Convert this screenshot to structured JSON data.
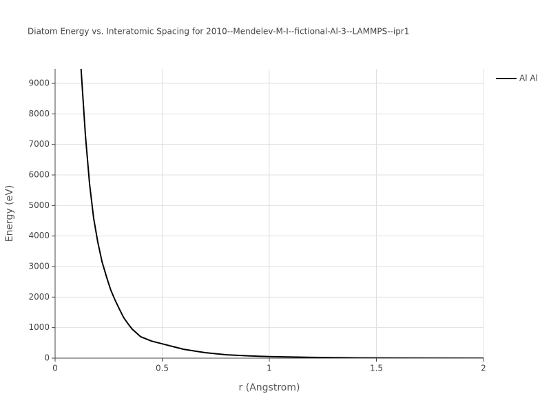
{
  "chart_data": {
    "type": "line",
    "title": "Diatom Energy vs. Interatomic Spacing for 2010--Mendelev-M-I--fictional-Al-3--LAMMPS--ipr1",
    "x_label": "r (Angstrom)",
    "y_label": "Energy (eV)",
    "x": [
      0.12,
      0.1415,
      0.161,
      0.18,
      0.199,
      0.219,
      0.241,
      0.26,
      0.28,
      0.302,
      0.32,
      0.34,
      0.36,
      0.4,
      0.45,
      0.5,
      0.6,
      0.7,
      0.8,
      0.9,
      1.0,
      1.2,
      1.4,
      1.6,
      1.8,
      2.0
    ],
    "series": [
      {
        "name": "Al Al",
        "color": "#000000",
        "values": [
          9600,
          7300,
          5700,
          4580,
          3810,
          3160,
          2640,
          2230,
          1900,
          1580,
          1330,
          1130,
          950,
          700,
          560,
          470,
          290,
          180,
          110,
          75,
          50,
          25,
          12,
          6,
          3,
          1
        ]
      }
    ],
    "xlim": [
      0,
      2
    ],
    "ylim": [
      0,
      9474
    ],
    "xticks": [
      0,
      0.5,
      1,
      1.5,
      2
    ],
    "yticks": [
      0,
      1000,
      2000,
      3000,
      4000,
      5000,
      6000,
      7000,
      8000,
      9000
    ],
    "grid": true
  }
}
